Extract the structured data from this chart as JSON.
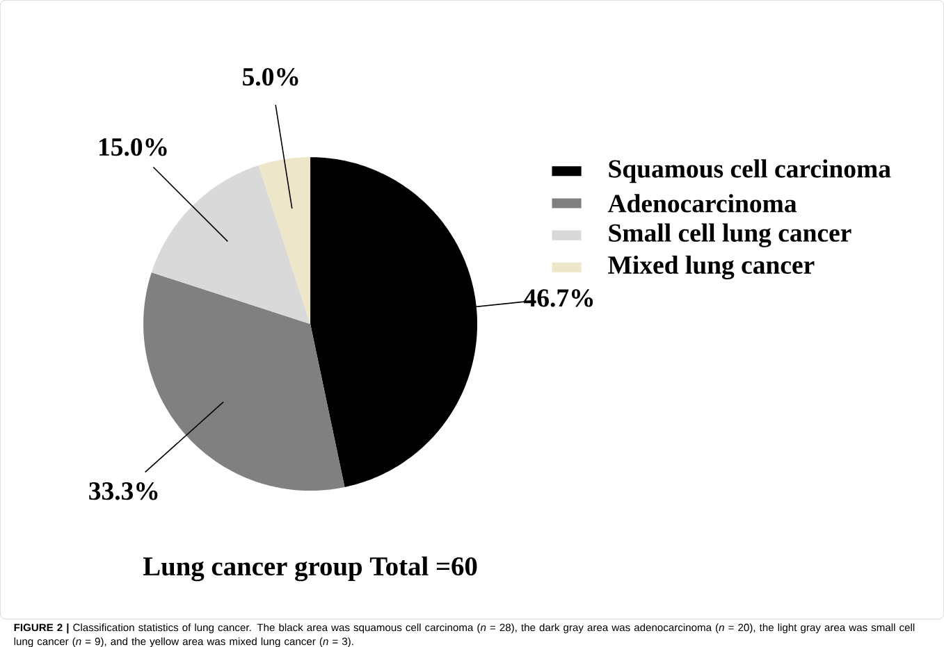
{
  "chart_data": {
    "type": "pie",
    "title": "Lung cancer group Total =60",
    "categories": [
      "Squamous cell carcinoma",
      "Adenocarcinoma",
      "Small cell lung cancer",
      "Mixed lung cancer"
    ],
    "values": [
      46.7,
      33.3,
      15.0,
      5.0
    ],
    "value_labels": [
      "46.7%",
      "33.3%",
      "15.0%",
      "5.0%"
    ],
    "colors": [
      "#000000",
      "#808080",
      "#d9d9d9",
      "#ede6c8"
    ],
    "legend": "right",
    "annotations": [
      "**FIGURE 2 |** Classification statistics of lung cancer. The black area was squamous cell carcinoma (*n* = 28), the dark gray area was adenocarcinoma (*n* = 20), the light gray area was small cell lung cancer (*n* = 9), and the yellow area was mixed lung cancer (*n* = 3)."
    ]
  }
}
